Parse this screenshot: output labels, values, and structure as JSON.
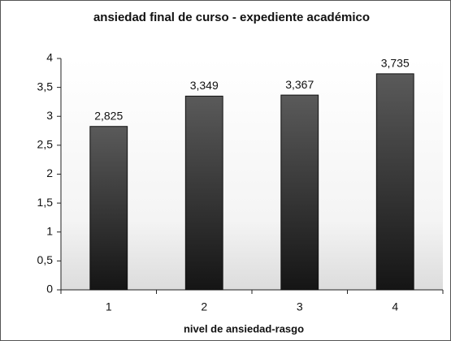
{
  "chart_data": {
    "type": "bar",
    "title": "ansiedad final de curso - expediente académico",
    "x_label": "nivel de ansiedad-rasgo",
    "categories": [
      "1",
      "2",
      "3",
      "4"
    ],
    "values": [
      2.825,
      3.349,
      3.367,
      3.735
    ],
    "value_labels": [
      "2,825",
      "3,349",
      "3,367",
      "3,735"
    ],
    "color": "#333333",
    "ylim": [
      0,
      4
    ],
    "yticks": [
      0,
      {
        "value": 0.5,
        "label": "0,5"
      },
      1,
      {
        "value": 1.5,
        "label": "1,5"
      },
      2,
      {
        "value": 2.5,
        "label": "2,5"
      },
      3,
      {
        "value": 3.5,
        "label": "3,5"
      },
      4
    ],
    "grid": false
  }
}
